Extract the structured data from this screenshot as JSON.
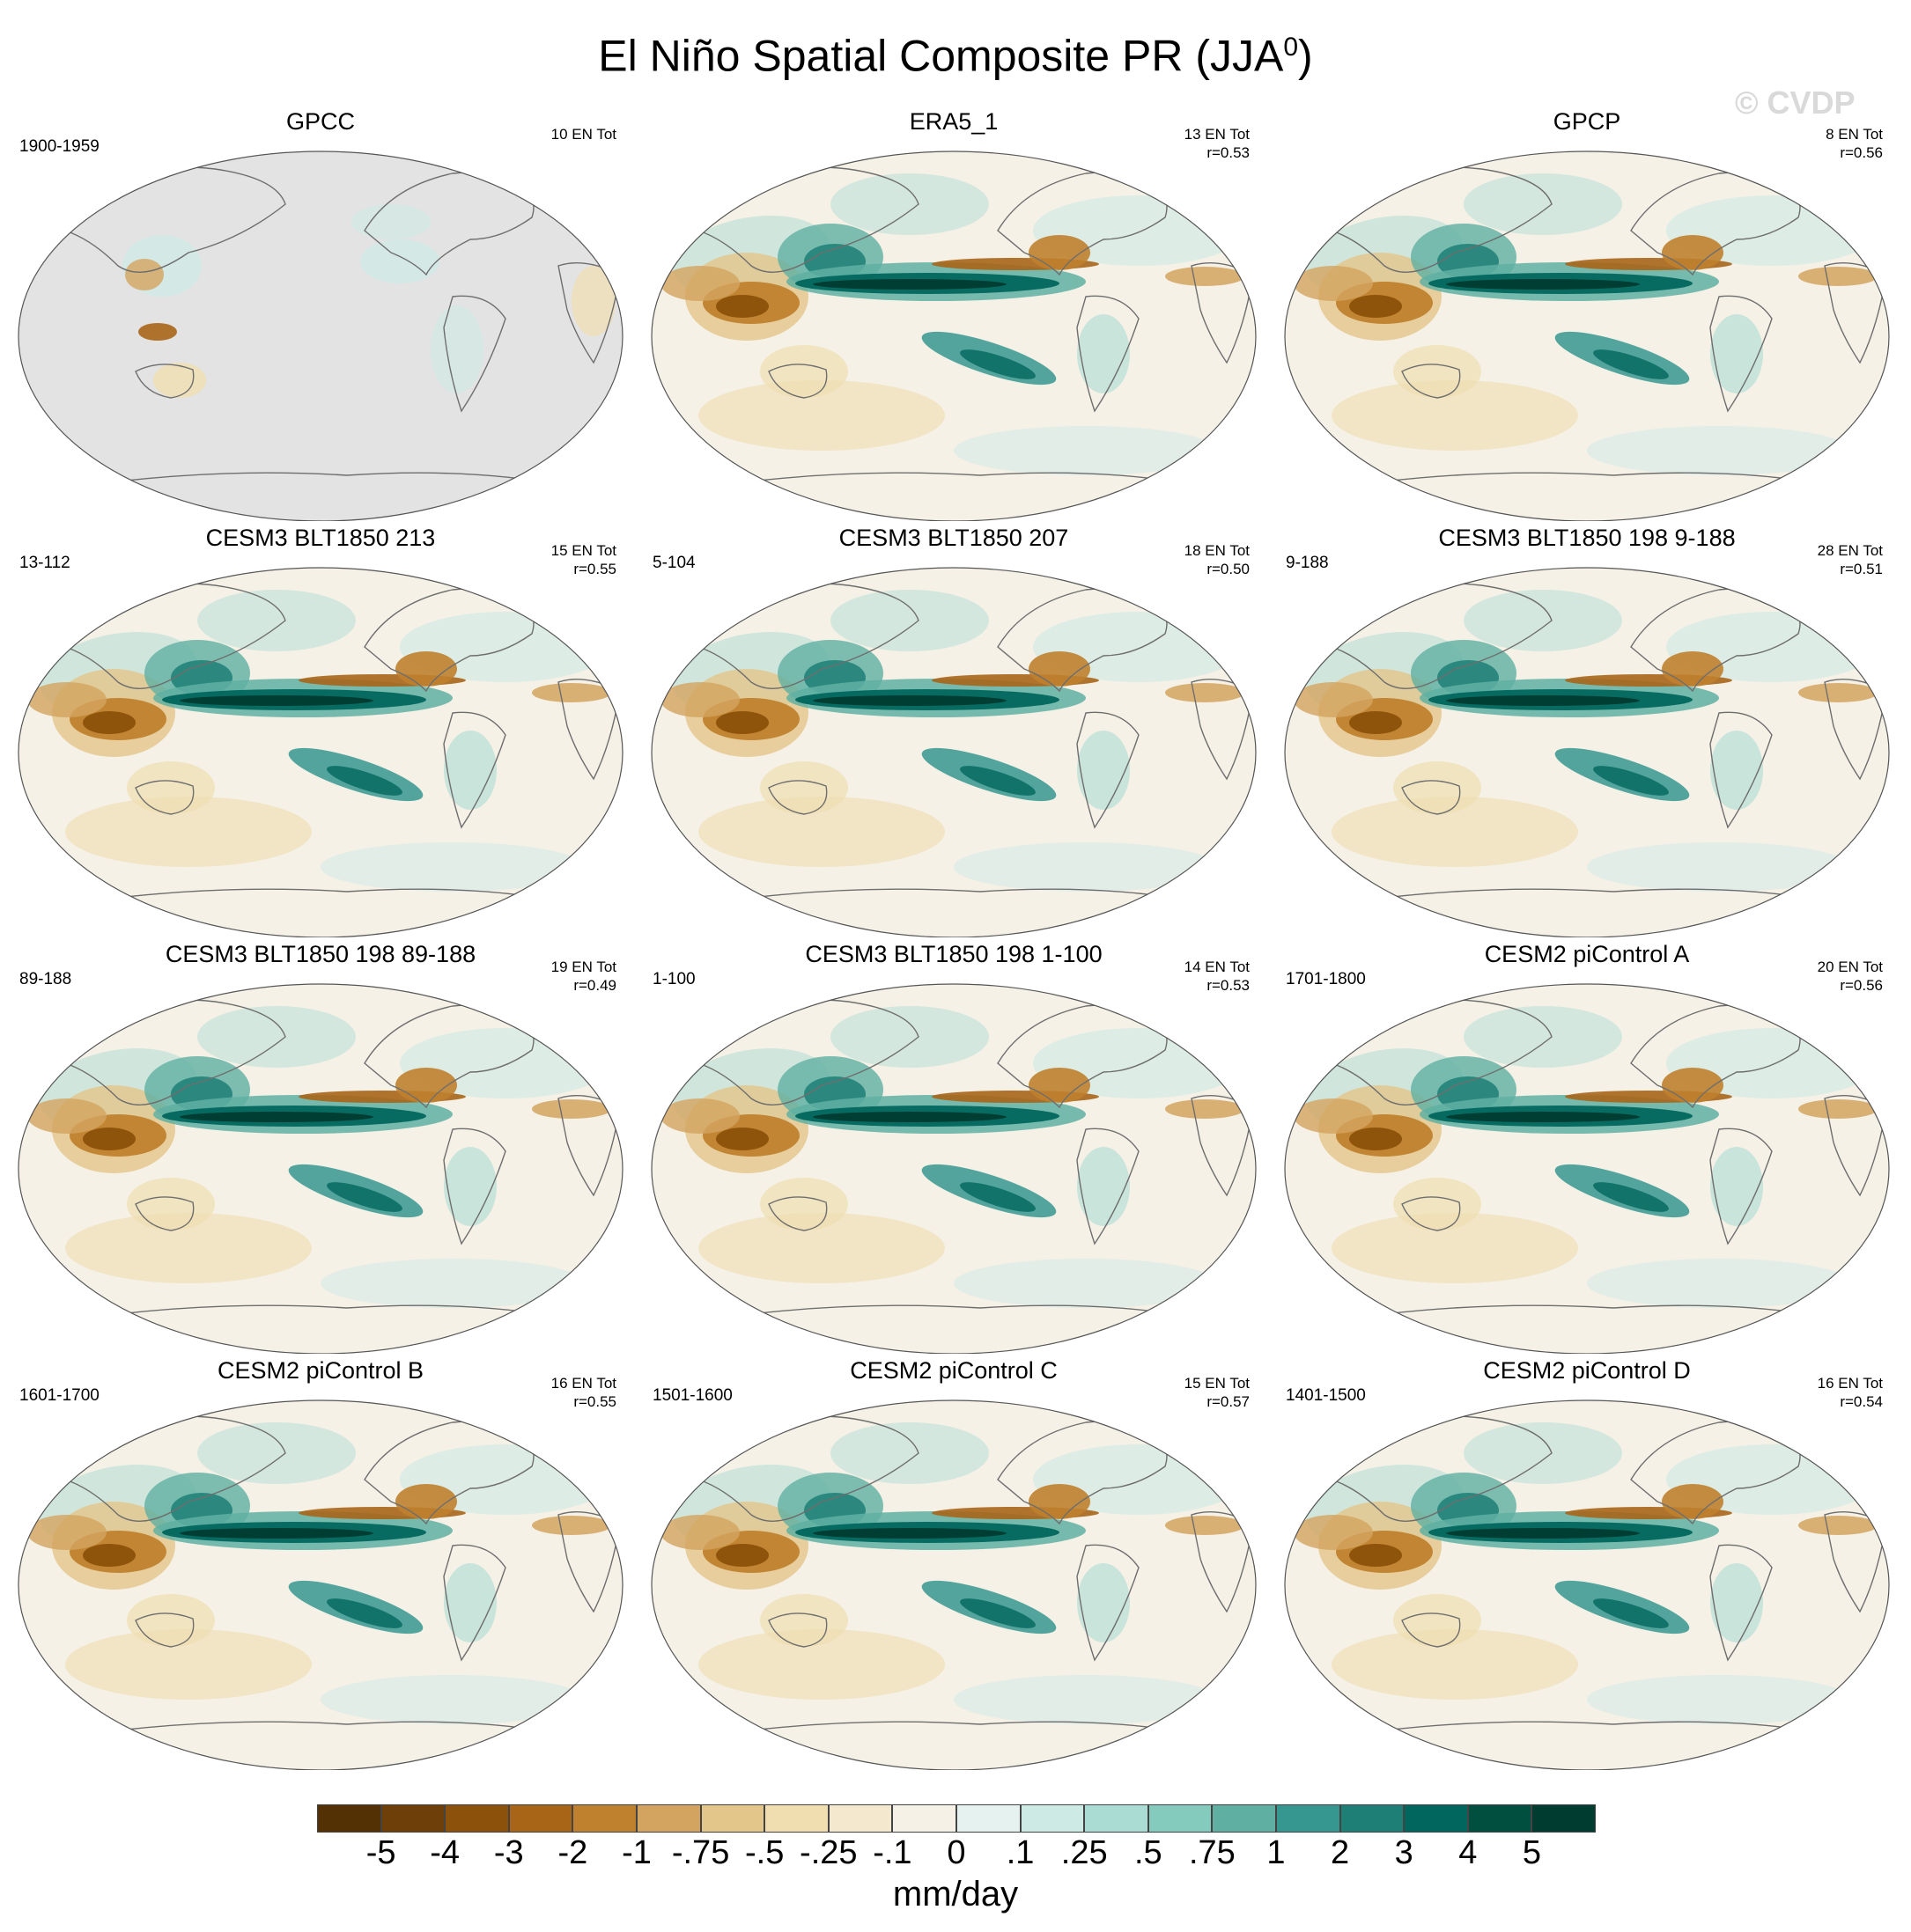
{
  "figure": {
    "title": "El Niño Spatial Composite PR (JJA",
    "title_superscript": "0",
    "title_close": ")",
    "watermark": "© CVDP",
    "units": "mm/day"
  },
  "colorbar": {
    "labels": [
      "-5",
      "-4",
      "-3",
      "-2",
      "-1",
      "-.75",
      "-.5",
      "-.25",
      "-.1",
      "0",
      ".1",
      ".25",
      ".5",
      ".75",
      "1",
      "2",
      "3",
      "4",
      "5"
    ],
    "colors": [
      "#543005",
      "#6e3f08",
      "#8c510a",
      "#a86518",
      "#bf812d",
      "#d3a45f",
      "#e3c689",
      "#f0deb0",
      "#f4e9cf",
      "#f5f1e7",
      "#e6f2ef",
      "#cdeae5",
      "#abdcd3",
      "#85cbbd",
      "#5fb0a2",
      "#35978f",
      "#1d7f75",
      "#01665e",
      "#01503f",
      "#003c30"
    ]
  },
  "panels": [
    {
      "title": "GPCC",
      "period": "1900-1959",
      "en_tot": "10 EN Tot",
      "r": "",
      "land_only": true
    },
    {
      "title": "ERA5_1",
      "period": "",
      "en_tot": "13 EN Tot",
      "r": "r=0.53",
      "land_only": false
    },
    {
      "title": "GPCP",
      "period": "",
      "en_tot": "8 EN Tot",
      "r": "r=0.56",
      "land_only": false
    },
    {
      "title": "CESM3 BLT1850 213",
      "period": "13-112",
      "en_tot": "15 EN Tot",
      "r": "r=0.55",
      "land_only": false
    },
    {
      "title": "CESM3 BLT1850 207",
      "period": "5-104",
      "en_tot": "18 EN Tot",
      "r": "r=0.50",
      "land_only": false
    },
    {
      "title": "CESM3 BLT1850 198 9-188",
      "period": "9-188",
      "en_tot": "28 EN Tot",
      "r": "r=0.51",
      "land_only": false
    },
    {
      "title": "CESM3 BLT1850 198 89-188",
      "period": "89-188",
      "en_tot": "19 EN Tot",
      "r": "r=0.49",
      "land_only": false
    },
    {
      "title": "CESM3 BLT1850 198 1-100",
      "period": "1-100",
      "en_tot": "14 EN Tot",
      "r": "r=0.53",
      "land_only": false
    },
    {
      "title": "CESM2 piControl A",
      "period": "1701-1800",
      "en_tot": "20 EN Tot",
      "r": "r=0.56",
      "land_only": false
    },
    {
      "title": "CESM2 piControl B",
      "period": "1601-1700",
      "en_tot": "16 EN Tot",
      "r": "r=0.55",
      "land_only": false
    },
    {
      "title": "CESM2 piControl C",
      "period": "1501-1600",
      "en_tot": "15 EN Tot",
      "r": "r=0.57",
      "land_only": false
    },
    {
      "title": "CESM2 piControl D",
      "period": "1401-1500",
      "en_tot": "16 EN Tot",
      "r": "r=0.54",
      "land_only": false
    }
  ]
}
